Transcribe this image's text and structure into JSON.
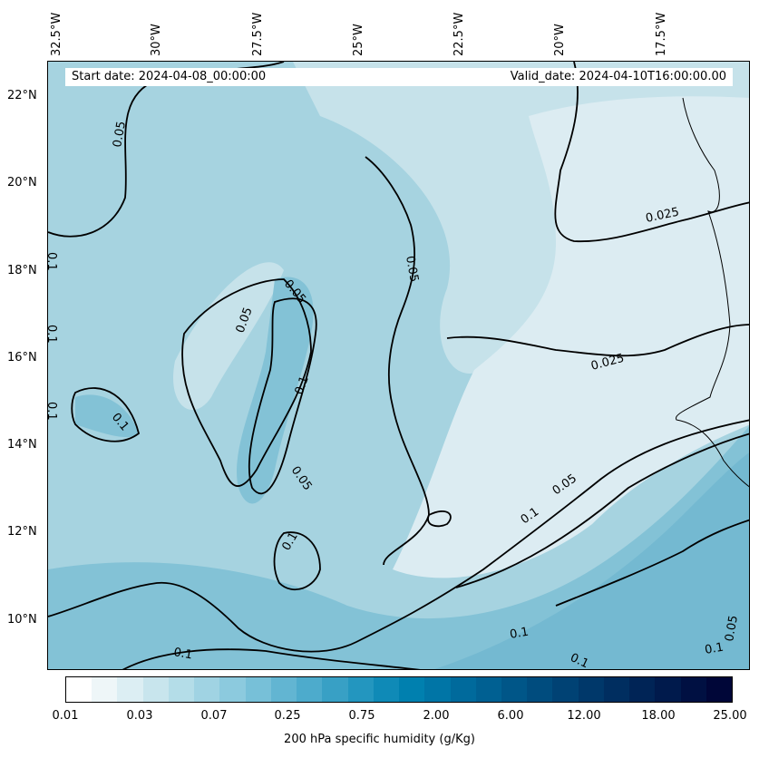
{
  "header": {
    "start_date": "Start date: 2024-04-08_00:00:00",
    "valid_date": "Valid_date: 2024-04-10T16:00:00.00"
  },
  "axes": {
    "longitude_labels": [
      "32.5°W",
      "30°W",
      "27.5°W",
      "25°W",
      "22.5°W",
      "20°W",
      "17.5°W"
    ],
    "latitude_labels": [
      "22°N",
      "20°N",
      "18°N",
      "16°N",
      "14°N",
      "12°N",
      "10°N"
    ]
  },
  "contours": {
    "levels": [
      "0.025",
      "0.05",
      "0.1"
    ],
    "labels": [
      "0.05",
      "0.025",
      "0.05",
      "0.05",
      "0.05",
      "0.1",
      "0.1",
      "0.1",
      "0.1",
      "0.025",
      "0.05",
      "0.05",
      "0.1",
      "0.1",
      "0.1",
      "0.1",
      "0.1",
      "0.1",
      "0.1",
      "0.05"
    ]
  },
  "colorbar": {
    "title": "200 hPa specific humidity (g/Kg)",
    "tick_labels": [
      "0.01",
      "0.03",
      "0.07",
      "0.25",
      "0.75",
      "2.00",
      "6.00",
      "12.00",
      "18.00",
      "25.00"
    ],
    "colors": [
      "#ffffff",
      "#eef6f8",
      "#dceef3",
      "#c8e5ed",
      "#b4dde8",
      "#a0d3e3",
      "#8ccade",
      "#77c0d8",
      "#62b5d2",
      "#4dabcc",
      "#38a0c5",
      "#2396bf",
      "#0f8ab7",
      "#0080af",
      "#0075a6",
      "#006a9c",
      "#006092",
      "#005688",
      "#004c7e",
      "#004274",
      "#00386a",
      "#002e60",
      "#002456",
      "#001a4c",
      "#001042",
      "#000638"
    ]
  },
  "map_colors": {
    "lightest": "#dcecf2",
    "light": "#c6e2ea",
    "medium": "#a6d3e0",
    "dark": "#83c2d6",
    "darker": "#74b9d1"
  }
}
